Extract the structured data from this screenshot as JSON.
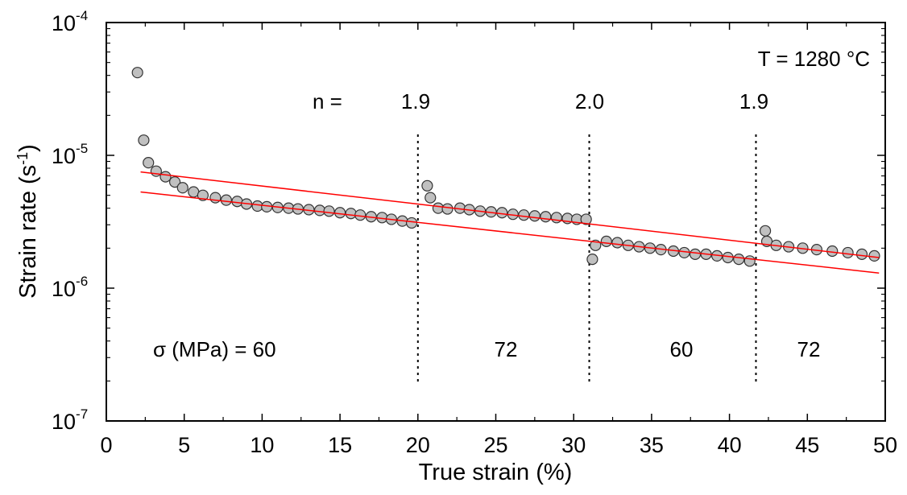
{
  "chart_data": {
    "type": "scatter",
    "xlabel": "True strain (%)",
    "ylabel": {
      "main": "Strain rate (s",
      "sup": "-1",
      "close": ")"
    },
    "xlim": [
      0,
      50
    ],
    "ylim": [
      1e-07,
      0.0001
    ],
    "yscale": "log",
    "grid": false,
    "x_ticks": [
      "0",
      "5",
      "10",
      "15",
      "20",
      "25",
      "30",
      "35",
      "40",
      "45",
      "50"
    ],
    "y_ticks": [
      {
        "base": "10",
        "exp": "-7",
        "value": 1e-07
      },
      {
        "base": "10",
        "exp": "-6",
        "value": 1e-06
      },
      {
        "base": "10",
        "exp": "-5",
        "value": 1e-05
      },
      {
        "base": "10",
        "exp": "-4",
        "value": 0.0001
      }
    ],
    "annotations": {
      "temperature": "T = 1280 °C",
      "n_label": "n  =",
      "n_values": [
        "1.9",
        "2.0",
        "1.9"
      ],
      "sigma_label": "σ (MPa) = 60",
      "stress_values": [
        "72",
        "60",
        "72"
      ]
    },
    "stress_change_strains": [
      20.0,
      31.0,
      41.7
    ],
    "marker_color": "#c0c0c0",
    "fit_line_color": "#ff0000",
    "points": [
      [
        2.0,
        4.2e-05
      ],
      [
        2.4,
        1.3e-05
      ],
      [
        2.7,
        8.8e-06
      ],
      [
        3.2,
        7.6e-06
      ],
      [
        3.8,
        6.9e-06
      ],
      [
        4.4,
        6.3e-06
      ],
      [
        4.9,
        5.7e-06
      ],
      [
        5.6,
        5.3e-06
      ],
      [
        6.2,
        5e-06
      ],
      [
        7.0,
        4.8e-06
      ],
      [
        7.7,
        4.6e-06
      ],
      [
        8.4,
        4.5e-06
      ],
      [
        9.0,
        4.3e-06
      ],
      [
        9.7,
        4.15e-06
      ],
      [
        10.3,
        4.1e-06
      ],
      [
        11.0,
        4.05e-06
      ],
      [
        11.7,
        4e-06
      ],
      [
        12.3,
        3.95e-06
      ],
      [
        13.0,
        3.9e-06
      ],
      [
        13.7,
        3.85e-06
      ],
      [
        14.3,
        3.8e-06
      ],
      [
        15.0,
        3.7e-06
      ],
      [
        15.7,
        3.65e-06
      ],
      [
        16.3,
        3.55e-06
      ],
      [
        17.0,
        3.45e-06
      ],
      [
        17.7,
        3.4e-06
      ],
      [
        18.3,
        3.3e-06
      ],
      [
        19.0,
        3.2e-06
      ],
      [
        19.6,
        3.1e-06
      ],
      [
        20.6,
        5.9e-06
      ],
      [
        20.8,
        4.8e-06
      ],
      [
        21.3,
        4e-06
      ],
      [
        21.9,
        3.95e-06
      ],
      [
        22.7,
        4e-06
      ],
      [
        23.3,
        3.9e-06
      ],
      [
        24.0,
        3.8e-06
      ],
      [
        24.7,
        3.75e-06
      ],
      [
        25.4,
        3.7e-06
      ],
      [
        26.1,
        3.6e-06
      ],
      [
        26.8,
        3.55e-06
      ],
      [
        27.5,
        3.5e-06
      ],
      [
        28.2,
        3.45e-06
      ],
      [
        28.9,
        3.4e-06
      ],
      [
        29.6,
        3.35e-06
      ],
      [
        30.2,
        3.3e-06
      ],
      [
        30.8,
        3.3e-06
      ],
      [
        31.2,
        1.65e-06
      ],
      [
        31.4,
        2.1e-06
      ],
      [
        32.1,
        2.25e-06
      ],
      [
        32.8,
        2.2e-06
      ],
      [
        33.5,
        2.1e-06
      ],
      [
        34.2,
        2.05e-06
      ],
      [
        34.9,
        2e-06
      ],
      [
        35.6,
        1.95e-06
      ],
      [
        36.4,
        1.9e-06
      ],
      [
        37.1,
        1.85e-06
      ],
      [
        37.8,
        1.8e-06
      ],
      [
        38.5,
        1.8e-06
      ],
      [
        39.2,
        1.75e-06
      ],
      [
        39.9,
        1.7e-06
      ],
      [
        40.6,
        1.65e-06
      ],
      [
        41.3,
        1.6e-06
      ],
      [
        42.3,
        2.7e-06
      ],
      [
        42.4,
        2.25e-06
      ],
      [
        43.0,
        2.1e-06
      ],
      [
        43.8,
        2.05e-06
      ],
      [
        44.7,
        2e-06
      ],
      [
        45.6,
        1.95e-06
      ],
      [
        46.6,
        1.9e-06
      ],
      [
        47.6,
        1.85e-06
      ],
      [
        48.5,
        1.8e-06
      ],
      [
        49.3,
        1.75e-06
      ]
    ],
    "fit_lines": [
      {
        "x": [
          2.2,
          49.6
        ],
        "y": [
          7.5e-06,
          1.7e-06
        ]
      },
      {
        "x": [
          2.2,
          49.6
        ],
        "y": [
          5.3e-06,
          1.3e-06
        ]
      }
    ]
  }
}
